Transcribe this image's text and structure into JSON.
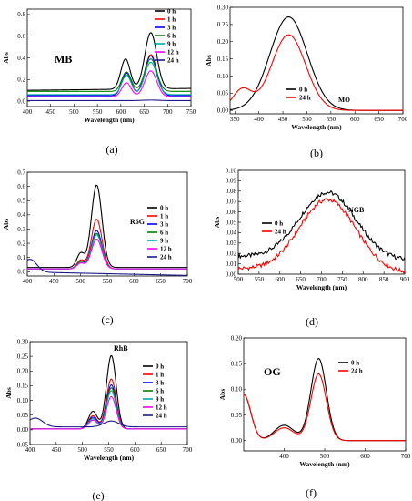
{
  "chart_data": [
    {
      "id": "a",
      "type": "line",
      "panel_label": "(a)",
      "title": "",
      "annotation": "MB",
      "xlabel": "Wavelength (nm)",
      "ylabel": "Abs",
      "xlim": [
        400,
        750
      ],
      "ylim": [
        -0.05,
        0.85
      ],
      "xticks": [
        400,
        450,
        500,
        550,
        600,
        650,
        700,
        750
      ],
      "yticks": [
        0.0,
        0.2,
        0.4,
        0.6,
        0.8
      ],
      "series": [
        {
          "name": "0 h",
          "color": "#000000",
          "base": 0.08,
          "slope": 5e-05,
          "peaks": [
            [
              610,
              0.28,
              14
            ],
            [
              664,
              0.52,
              18
            ]
          ]
        },
        {
          "name": "1 h",
          "color": "#ff0000",
          "base": 0.05,
          "slope": 0.0,
          "peaks": [
            [
              612,
              0.22,
              14
            ],
            [
              664,
              0.38,
              18
            ]
          ]
        },
        {
          "name": "3 h",
          "color": "#0000ff",
          "base": 0.05,
          "slope": 0.0,
          "peaks": [
            [
              612,
              0.21,
              14
            ],
            [
              664,
              0.37,
              18
            ]
          ]
        },
        {
          "name": "6 h",
          "color": "#008000",
          "base": 0.09,
          "slope": 0.0,
          "peaks": [
            [
              612,
              0.18,
              14
            ],
            [
              664,
              0.3,
              18
            ]
          ]
        },
        {
          "name": "9 h",
          "color": "#00aaaa",
          "base": 0.06,
          "slope": 0.0,
          "peaks": [
            [
              612,
              0.18,
              14
            ],
            [
              664,
              0.3,
              18
            ]
          ]
        },
        {
          "name": "12 h",
          "color": "#ff00ff",
          "base": 0.04,
          "slope": 0.0,
          "peaks": [
            [
              612,
              0.13,
              14
            ],
            [
              664,
              0.24,
              18
            ]
          ]
        },
        {
          "name": "24 h",
          "color": "#1a1a8a",
          "base": 0.005,
          "slope": 0.0,
          "peaks": [
            [
              664,
              0.005,
              25
            ]
          ]
        }
      ]
    },
    {
      "id": "b",
      "type": "line",
      "panel_label": "(b)",
      "title": "",
      "annotation": "MO",
      "xlabel": "Wavelength (nm)",
      "ylabel": "Abs",
      "xlim": [
        340,
        700
      ],
      "ylim": [
        -0.01,
        0.3
      ],
      "xticks": [
        350,
        400,
        450,
        500,
        550,
        600,
        650,
        700
      ],
      "yticks": [
        0.0,
        0.05,
        0.1,
        0.15,
        0.2,
        0.25,
        0.3
      ],
      "series": [
        {
          "name": "0 h",
          "color": "#000000",
          "base": 0.0,
          "slope": 0.0,
          "peaks": [
            [
              462,
              0.272,
              55
            ]
          ]
        },
        {
          "name": "24 h",
          "color": "#ff0000",
          "base": 0.0,
          "slope": 0.0,
          "peaks": [
            [
              462,
              0.22,
              50
            ],
            [
              365,
              0.06,
              28
            ]
          ]
        }
      ]
    },
    {
      "id": "c",
      "type": "line",
      "panel_label": "(c)",
      "title": "",
      "annotation": "R6G",
      "xlabel": "",
      "ylabel": "Abs",
      "xlim": [
        400,
        700
      ],
      "ylim": [
        -0.03,
        0.7
      ],
      "xticks": [
        400,
        450,
        500,
        550,
        600,
        650,
        700
      ],
      "yticks": [
        0.0,
        0.1,
        0.2,
        0.3,
        0.4,
        0.5,
        0.6,
        0.7
      ],
      "series": [
        {
          "name": "0 h",
          "color": "#000000",
          "base": 0.03,
          "slope": 0.0,
          "peaks": [
            [
              530,
              0.58,
              14
            ],
            [
              500,
              0.1,
              10
            ]
          ]
        },
        {
          "name": "1 h",
          "color": "#ff0000",
          "base": 0.02,
          "slope": 0.0,
          "peaks": [
            [
              530,
              0.35,
              14
            ],
            [
              500,
              0.06,
              10
            ]
          ]
        },
        {
          "name": "3 h",
          "color": "#0000ff",
          "base": 0.02,
          "slope": 0.0,
          "peaks": [
            [
              530,
              0.27,
              14
            ],
            [
              500,
              0.05,
              10
            ]
          ]
        },
        {
          "name": "6 h",
          "color": "#008000",
          "base": 0.02,
          "slope": 0.0,
          "peaks": [
            [
              530,
              0.25,
              14
            ],
            [
              500,
              0.05,
              10
            ]
          ]
        },
        {
          "name": "9 h",
          "color": "#00aaaa",
          "base": 0.02,
          "slope": 0.0,
          "peaks": [
            [
              530,
              0.24,
              14
            ],
            [
              500,
              0.04,
              10
            ]
          ]
        },
        {
          "name": "12 h",
          "color": "#ff00ff",
          "base": 0.02,
          "slope": 0.0,
          "peaks": [
            [
              530,
              0.21,
              14
            ],
            [
              500,
              0.04,
              10
            ]
          ]
        },
        {
          "name": "24 h",
          "color": "#1a1a8a",
          "base": 0.03,
          "slope": -8e-05,
          "peaks": [
            [
              405,
              0.09,
              18
            ]
          ]
        }
      ]
    },
    {
      "id": "d",
      "type": "line",
      "panel_label": "(d)",
      "title": "",
      "annotation": "NGB",
      "xlabel": "Wavelength (nm)",
      "ylabel": "Abs",
      "xlim": [
        500,
        900
      ],
      "ylim": [
        0.0,
        0.1
      ],
      "xticks": [
        500,
        550,
        600,
        650,
        700,
        750,
        800,
        850,
        900
      ],
      "yticks": [
        0.0,
        0.01,
        0.02,
        0.03,
        0.04,
        0.05,
        0.06,
        0.07,
        0.08,
        0.09,
        0.1
      ],
      "series": [
        {
          "name": "0 h",
          "color": "#000000",
          "base": 0.022,
          "slope": -1e-05,
          "peaks": [
            [
              715,
              0.064,
              95
            ]
          ]
        },
        {
          "name": "24 h",
          "color": "#ff0000",
          "base": 0.01,
          "slope": -1e-05,
          "peaks": [
            [
              715,
              0.069,
              95
            ]
          ]
        }
      ]
    },
    {
      "id": "e",
      "type": "line",
      "panel_label": "(e)",
      "title": "",
      "annotation": "RhB",
      "xlabel": "Wavelength (nm)",
      "ylabel": "Abs",
      "xlim": [
        400,
        700
      ],
      "ylim": [
        -0.05,
        0.3
      ],
      "xticks": [
        400,
        450,
        500,
        550,
        600,
        650,
        700
      ],
      "yticks": [
        -0.05,
        0.0,
        0.05,
        0.1,
        0.15,
        0.2,
        0.25,
        0.3
      ],
      "series": [
        {
          "name": "0 h",
          "color": "#000000",
          "base": 0.003,
          "slope": 0.0,
          "peaks": [
            [
              555,
              0.25,
              13
            ],
            [
              520,
              0.06,
              12
            ]
          ]
        },
        {
          "name": "1 h",
          "color": "#ff0000",
          "base": 0.003,
          "slope": 0.0,
          "peaks": [
            [
              555,
              0.17,
              13
            ],
            [
              520,
              0.045,
              12
            ]
          ]
        },
        {
          "name": "3 h",
          "color": "#0000ff",
          "base": 0.003,
          "slope": 0.0,
          "peaks": [
            [
              555,
              0.15,
              13
            ],
            [
              520,
              0.04,
              12
            ]
          ]
        },
        {
          "name": "6 h",
          "color": "#008000",
          "base": 0.003,
          "slope": 0.0,
          "peaks": [
            [
              555,
              0.14,
              13
            ],
            [
              520,
              0.035,
              12
            ]
          ]
        },
        {
          "name": "9 h",
          "color": "#00aaaa",
          "base": 0.003,
          "slope": 0.0,
          "peaks": [
            [
              555,
              0.13,
              13
            ],
            [
              520,
              0.035,
              12
            ]
          ]
        },
        {
          "name": "12 h",
          "color": "#ff00ff",
          "base": 0.003,
          "slope": 0.0,
          "peaks": [
            [
              555,
              0.11,
              13
            ],
            [
              520,
              0.03,
              12
            ]
          ]
        },
        {
          "name": "24 h",
          "color": "#1a1a8a",
          "base": 0.01,
          "slope": 0.0,
          "peaks": [
            [
              410,
              0.03,
              20
            ],
            [
              555,
              0.02,
              20
            ]
          ]
        }
      ]
    },
    {
      "id": "f",
      "type": "line",
      "panel_label": "(f)",
      "title": "",
      "annotation": "OG",
      "xlabel": "Wavelength (nm)",
      "ylabel": "Abs",
      "xlim": [
        300,
        700
      ],
      "ylim": [
        -0.02,
        0.2
      ],
      "xticks": [
        400,
        500,
        600,
        700
      ],
      "yticks": [
        0.0,
        0.05,
        0.1,
        0.15,
        0.2
      ],
      "series": [
        {
          "name": "0 h",
          "color": "#000000",
          "base": 0.0,
          "slope": 0.0,
          "peaks": [
            [
              485,
              0.16,
              27
            ],
            [
              300,
              0.09,
              25
            ],
            [
              400,
              0.03,
              35
            ]
          ]
        },
        {
          "name": "24 h",
          "color": "#ff0000",
          "base": 0.0,
          "slope": 0.0,
          "peaks": [
            [
              485,
              0.13,
              27
            ],
            [
              300,
              0.09,
              25
            ],
            [
              400,
              0.025,
              35
            ]
          ]
        }
      ]
    }
  ]
}
